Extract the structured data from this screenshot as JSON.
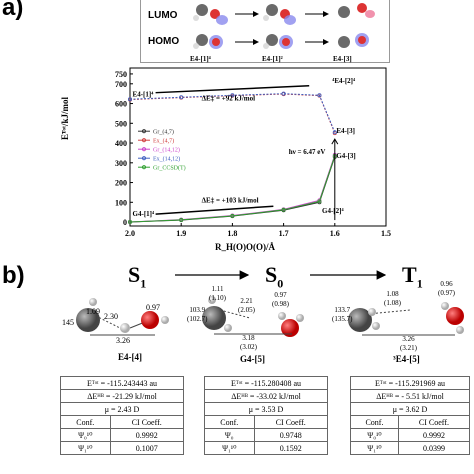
{
  "panel_a": {
    "label": "a)",
    "orbitals": {
      "lumo": "LUMO",
      "homo": "HOMO"
    },
    "structures": [
      "E4-[1]⁴",
      "E4-[1]²",
      "E4-[3]"
    ],
    "colors": {
      "carbon": "#555555",
      "oxygen": "#dd1a1a",
      "hydrogen": "#e6e6e6",
      "lobe_blue": "#5a5ae0",
      "lobe_red": "#ee5577"
    }
  },
  "panel_b": {
    "label": "b)",
    "states": [
      {
        "title": "S",
        "sub": "1",
        "name": "E4-[4]"
      },
      {
        "title": "S",
        "sub": "0",
        "name": "G4-[5]"
      },
      {
        "title": "T",
        "sub": "1",
        "name": "³E4-[5]"
      }
    ],
    "distances": {
      "s1": {
        "ch_top": "1.09",
        "angle": "145",
        "ho": "2.30",
        "oh": "0.97",
        "co": "3.26"
      },
      "s0": {
        "ch_top": "1.11",
        "ch_top_alt": "(1.10)",
        "angle": "103.9",
        "angle_alt": "(102.7)",
        "hh": "2.21",
        "hh_alt": "(2.05)",
        "oh": "0.97",
        "oh_alt": "(0.98)",
        "co": "3.18",
        "co_alt": "(3.02)"
      },
      "t1": {
        "angle": "133.7",
        "angle_alt": "(135.7)",
        "ch": "1.08",
        "ch_alt": "(1.08)",
        "oh": "0.96",
        "oh_alt": "(0.97)",
        "co": "3.26",
        "co_alt": "(3.21)"
      }
    },
    "tables": [
      {
        "etot": "Eᵀᵒᵗ = -115.243443 au",
        "dehb": "ΔEᴴᴮ = -21.29 kJ/mol",
        "mu": "μ = 2.43 D",
        "headers": [
          "Conf.",
          "CI Coeff."
        ],
        "rows": [
          [
            "Ψ₀¹⁰",
            "0.9992"
          ],
          [
            "Ψ₁¹⁰",
            "0.1007"
          ]
        ]
      },
      {
        "etot": "Eᵀᵒᵗ = -115.280408 au",
        "dehb": "ΔEᴴᴮ = -33.02 kJ/mol",
        "mu": "μ = 3.53 D",
        "headers": [
          "Conf.",
          "CI Coeff."
        ],
        "rows": [
          [
            "Ψ₀",
            "0.9748"
          ],
          [
            "Ψ₁¹⁰",
            "0.1592"
          ]
        ]
      },
      {
        "etot": "Eᵀᵒᵗ = -115.291969 au",
        "dehb": "ΔEᴴᴮ = - 5.51 kJ/mol",
        "mu": "μ = 3.62 D",
        "headers": [
          "Conf.",
          "CI Coeff."
        ],
        "rows": [
          [
            "Ψ₀¹⁰",
            "0.9992"
          ],
          [
            "Ψ₁¹⁰",
            "0.0399"
          ]
        ]
      }
    ]
  },
  "chart_data": {
    "type": "line",
    "title": "",
    "xlabel": "R_H(O)O(O)/Å",
    "ylabel": "Eᵀᵒᵗ/kJ/mol",
    "xlim": [
      2.0,
      1.5
    ],
    "ylim": [
      -20,
      780
    ],
    "xticks": [
      "2.0",
      "1.9",
      "1.8",
      "1.7",
      "1.6",
      "1.5"
    ],
    "yticks": [
      "0",
      "100",
      "200",
      "300",
      "400",
      "500",
      "600",
      "700",
      "750"
    ],
    "series": [
      {
        "name": "Gr_(4,7)",
        "color": "#333333",
        "x": [
          2.0,
          1.9,
          1.8,
          1.7,
          1.63,
          1.6
        ],
        "y": [
          0,
          10,
          30,
          60,
          100,
          330
        ]
      },
      {
        "name": "Ex_(4,7)",
        "color": "#d04040",
        "x": [
          2.0,
          1.9,
          1.8,
          1.7,
          1.63,
          1.6
        ],
        "y": [
          620,
          630,
          640,
          648,
          640,
          450
        ]
      },
      {
        "name": "Gr_(14,12)",
        "color": "#cc44cc",
        "x": [
          2.0,
          1.9,
          1.8,
          1.7,
          1.63,
          1.6
        ],
        "y": [
          0,
          12,
          33,
          64,
          110,
          340
        ]
      },
      {
        "name": "Ex_(14,12)",
        "color": "#4060c0",
        "x": [
          2.0,
          1.9,
          1.8,
          1.7,
          1.63,
          1.6
        ],
        "y": [
          622,
          632,
          642,
          650,
          642,
          455
        ]
      },
      {
        "name": "Gr_CCSD(T)",
        "color": "#30a030",
        "x": [
          2.0,
          1.9,
          1.8,
          1.7,
          1.63,
          1.6
        ],
        "y": [
          0,
          11,
          31,
          62,
          105,
          335
        ]
      }
    ],
    "annotations": [
      {
        "text": "E4-[1]⁴"
      },
      {
        "text": "ΔE‡ = +92 kJ/mol"
      },
      {
        "text": "⁴E4-[2]⁴"
      },
      {
        "text": "E4-[3]"
      },
      {
        "text": "hν = 6.47 eV"
      },
      {
        "text": "G4-[3]"
      },
      {
        "text": "ΔE‡ = +103 kJ/mol"
      },
      {
        "text": "G4-[1]⁴"
      },
      {
        "text": "G4-[2]⁴"
      }
    ]
  }
}
